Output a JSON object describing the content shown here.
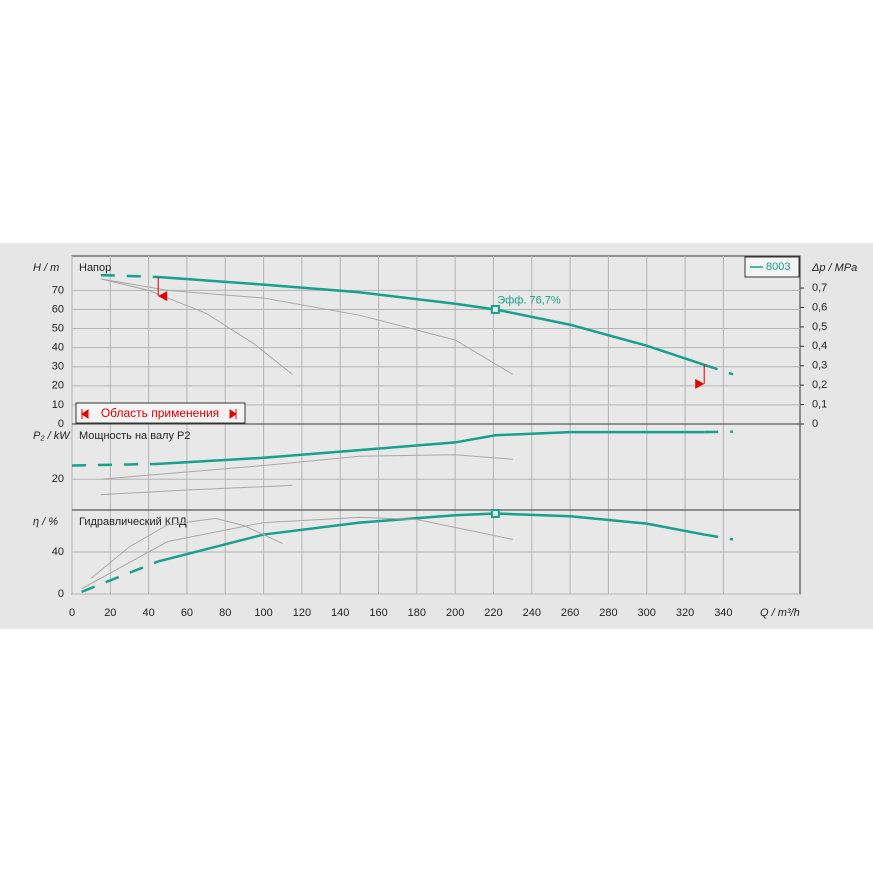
{
  "chart_data": [
    {
      "type": "line",
      "title": "Напор",
      "ylabel": "H / m",
      "y2label": "Δp / MPa",
      "ylim": [
        0,
        88
      ],
      "yticks": [
        0,
        10,
        20,
        30,
        40,
        50,
        60,
        70
      ],
      "y2lim": [
        0,
        0.865
      ],
      "y2ticks": [
        0,
        {
          "value": 0.1,
          "label": "0,1"
        },
        {
          "value": 0.2,
          "label": "0,2"
        },
        {
          "value": 0.3,
          "label": "0,3"
        },
        {
          "value": 0.4,
          "label": "0,4"
        },
        {
          "value": 0.5,
          "label": "0,5"
        },
        {
          "value": 0.6,
          "label": "0,6"
        },
        {
          "value": 0.7,
          "label": "0,7"
        }
      ],
      "xlim": [
        0,
        380
      ],
      "xticks": [
        0,
        20,
        40,
        60,
        80,
        100,
        120,
        140,
        160,
        180,
        200,
        220,
        240,
        260,
        280,
        300,
        320,
        340
      ],
      "xlabel": "Q / m³/h",
      "grid": true,
      "legend": "top-right",
      "range_label": "Область применения",
      "range": [
        45,
        330
      ],
      "range_marks": [
        [
          77,
          67
        ],
        [
          31,
          21
        ]
      ],
      "point": {
        "x": 221,
        "y": 60,
        "label": "Эфф.  76,7%"
      },
      "series": [
        {
          "name": "8003",
          "color": "#17a08c",
          "x": [
            45,
            100,
            150,
            200,
            221,
            260,
            300,
            330
          ],
          "values": [
            77,
            73,
            69,
            63,
            60,
            52,
            41,
            31
          ]
        },
        {
          "color": "#17a08c",
          "dash": true,
          "x": [
            15,
            30,
            45
          ],
          "values": [
            78,
            77.5,
            77
          ]
        },
        {
          "color": "#17a08c",
          "dash": true,
          "x": [
            330,
            345
          ],
          "values": [
            31,
            26
          ]
        },
        {
          "color": "#a8a8a8",
          "x": [
            15,
            50,
            100,
            150,
            200,
            230
          ],
          "values": [
            76,
            70,
            66,
            57,
            44,
            26
          ]
        },
        {
          "color": "#a8a8a8",
          "x": [
            15,
            40,
            70,
            95,
            110,
            115
          ],
          "values": [
            76,
            70,
            58,
            42,
            30,
            26
          ]
        }
      ]
    },
    {
      "type": "line",
      "title": "Мощность на валу P2",
      "ylabel": "P₂ / kW",
      "ylim": [
        0,
        56
      ],
      "yticks": [
        20
      ],
      "grid": true,
      "series": [
        {
          "color": "#17a08c",
          "x": [
            45,
            100,
            150,
            200,
            221,
            260,
            330
          ],
          "values": [
            30,
            34,
            39,
            44,
            48.7,
            50.7,
            50.7
          ]
        },
        {
          "color": "#17a08c",
          "dash": true,
          "x": [
            0,
            45
          ],
          "values": [
            29,
            30
          ]
        },
        {
          "color": "#17a08c",
          "dash": true,
          "x": [
            330,
            345
          ],
          "values": [
            50.7,
            51
          ]
        },
        {
          "color": "#a8a8a8",
          "x": [
            15,
            100,
            150,
            200,
            230
          ],
          "values": [
            20,
            29,
            35,
            36,
            33
          ]
        },
        {
          "color": "#a8a8a8",
          "x": [
            15,
            60,
            115
          ],
          "values": [
            10,
            13,
            16
          ]
        }
      ]
    },
    {
      "type": "line",
      "title": "Гидравлический КПД",
      "ylabel": "η / %",
      "ylim": [
        0,
        80
      ],
      "yticks": [
        0,
        40
      ],
      "grid": true,
      "series": [
        {
          "color": "#17a08c",
          "x": [
            45,
            100,
            150,
            200,
            221,
            260,
            300,
            330
          ],
          "values": [
            31,
            56.6,
            68,
            75,
            76.7,
            74,
            67,
            56.6
          ]
        },
        {
          "color": "#17a08c",
          "dash": true,
          "x": [
            5,
            20,
            45
          ],
          "values": [
            2,
            13,
            31
          ]
        },
        {
          "color": "#17a08c",
          "dash": true,
          "x": [
            330,
            345
          ],
          "values": [
            56.6,
            52
          ]
        },
        {
          "color": "#a8a8a8",
          "x": [
            5,
            50,
            100,
            150,
            180,
            230
          ],
          "values": [
            5,
            50,
            68,
            73,
            71,
            52
          ]
        },
        {
          "color": "#a8a8a8",
          "x": [
            10,
            30,
            50,
            75,
            90,
            110
          ],
          "values": [
            15,
            45,
            66,
            72,
            65,
            48
          ]
        }
      ],
      "point": {
        "x": 221,
        "y": 76.7
      }
    }
  ]
}
